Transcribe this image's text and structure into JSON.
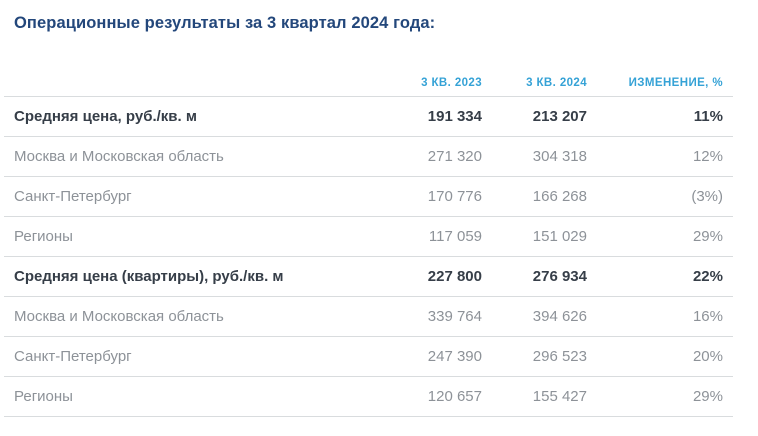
{
  "page": {
    "title": "Операционные результаты за 3 квартал 2024 года:"
  },
  "table": {
    "headers": {
      "period1": "3 КВ. 2023",
      "period2": "3 КВ. 2024",
      "change": "ИЗМЕНЕНИЕ, %"
    },
    "rows": [
      {
        "label": "Средняя цена, руб./кв. м",
        "q3_2023": "191 334",
        "q3_2024": "213 207",
        "change": "11%",
        "emphasis": true
      },
      {
        "label": "Москва и Московская область",
        "q3_2023": "271 320",
        "q3_2024": "304 318",
        "change": "12%",
        "emphasis": false
      },
      {
        "label": "Санкт-Петербург",
        "q3_2023": "170 776",
        "q3_2024": "166 268",
        "change": "(3%)",
        "emphasis": false
      },
      {
        "label": "Регионы",
        "q3_2023": "117 059",
        "q3_2024": "151 029",
        "change": "29%",
        "emphasis": false
      },
      {
        "label": "Средняя цена (квартиры), руб./кв. м",
        "q3_2023": "227 800",
        "q3_2024": "276 934",
        "change": "22%",
        "emphasis": true
      },
      {
        "label": "Москва и Московская область",
        "q3_2023": "339 764",
        "q3_2024": "394 626",
        "change": "16%",
        "emphasis": false
      },
      {
        "label": "Санкт-Петербург",
        "q3_2023": "247 390",
        "q3_2024": "296 523",
        "change": "20%",
        "emphasis": false
      },
      {
        "label": "Регионы",
        "q3_2023": "120 657",
        "q3_2024": "155 427",
        "change": "29%",
        "emphasis": false
      }
    ]
  },
  "colors": {
    "background": "#ffffff",
    "title": "#23477b",
    "column_header": "#35a2d6",
    "row_emphasis": "#363e48",
    "row_regular": "#8d9298",
    "divider": "#d9dcde"
  }
}
